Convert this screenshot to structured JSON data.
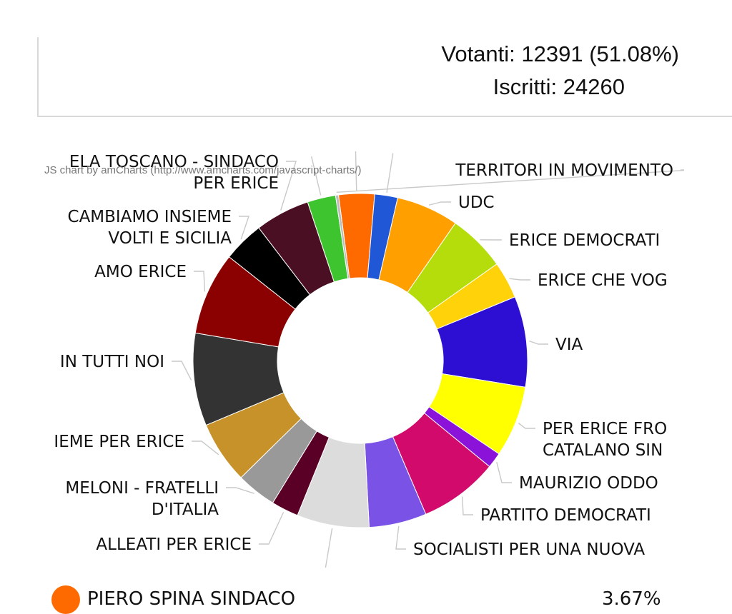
{
  "stats": {
    "voters": "Votanti: 12391 (51.08%)",
    "registered": "Iscritti: 24260"
  },
  "credit": "JS chart by amCharts (http://www.amcharts.com/javascript-charts/)",
  "legend": {
    "name": "PIERO SPINA SINDACO",
    "percent": "3.67%",
    "color": "#ff6a00"
  },
  "chart_data": {
    "type": "pie",
    "style": "donut",
    "slices": [
      {
        "label": "PIERO SPINA SINDACO",
        "value": 3.67,
        "color": "#ff6a00"
      },
      {
        "label": "",
        "value": 2.35,
        "color": "#1f57d6"
      },
      {
        "label": "UDC",
        "value": 6.4,
        "color": "#ff9f00"
      },
      {
        "label": "ERICE DEMOCRATI",
        "value": 5.9,
        "color": "#b4dd0b"
      },
      {
        "label": "ERICE CHE VOG",
        "value": 3.8,
        "color": "#ffd20a"
      },
      {
        "label": "VIA",
        "value": 9.3,
        "color": "#2c0fd3"
      },
      {
        "label": "PER ERICE FRO CATALANO SIN",
        "value": 7.3,
        "color": "#ffff00"
      },
      {
        "label": "MAURIZIO ODDO",
        "value": 1.6,
        "color": "#8b12d9"
      },
      {
        "label": "PARTITO DEMOCRATI",
        "value": 8.1,
        "color": "#d10a6b"
      },
      {
        "label": "SOCIALISTI PER UNA NUOVA",
        "value": 5.9,
        "color": "#7a52e6"
      },
      {
        "label": "",
        "value": 7.4,
        "color": "#dcdcdc"
      },
      {
        "label": "ALLEATI PER ERICE",
        "value": 2.8,
        "color": "#5a0027"
      },
      {
        "label": "MELONI - FRATELLI D'ITALIA",
        "value": 4.1,
        "color": "#999999"
      },
      {
        "label": "IEME PER ERICE",
        "value": 6.4,
        "color": "#c8922a"
      },
      {
        "label": "IN TUTTI NOI",
        "value": 9.5,
        "color": "#333333"
      },
      {
        "label": "AMO ERICE",
        "value": 8.5,
        "color": "#8b0000"
      },
      {
        "label": "CAMBIAMO INSIEME VOLTI E SICILIA",
        "value": 4.2,
        "color": "#000000"
      },
      {
        "label": "ELA TOSCANO - SINDACO PER ERICE",
        "value": 5.6,
        "color": "#4a0f22"
      },
      {
        "label": "",
        "value": 2.9,
        "color": "#3ec42f"
      },
      {
        "label": "TERRITORI IN MOVIMENTO",
        "value": 0.3,
        "color": "#bbbbbb"
      }
    ]
  }
}
